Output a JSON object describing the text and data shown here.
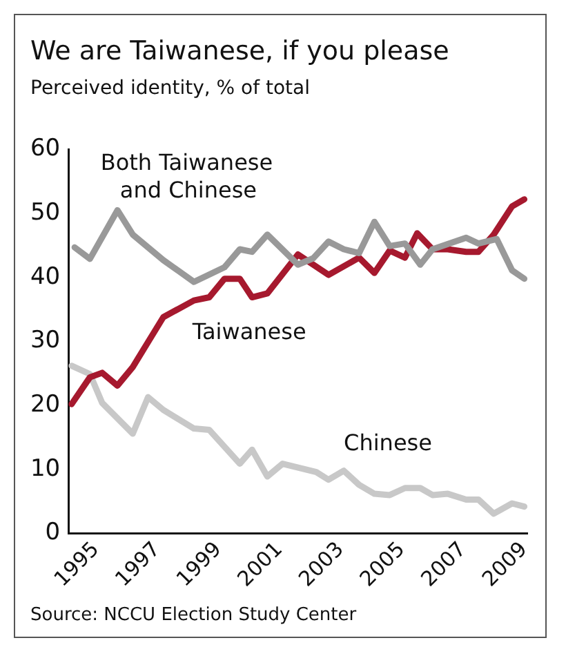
{
  "chart_data": {
    "type": "line",
    "title": "We are Taiwanese, if you please",
    "subtitle": "Perceived identity, % of total",
    "annotations": [
      "Source: NCCU Election Study Center"
    ],
    "xlim": [
      1994.1,
      2009.1
    ],
    "xticks": [
      1995,
      1997,
      1999,
      2001,
      2003,
      2005,
      2007,
      2009
    ],
    "ylim": [
      0,
      60
    ],
    "yticks": [
      0,
      10,
      20,
      30,
      40,
      50,
      60
    ],
    "grid": false,
    "legend": false,
    "marker": "none",
    "line_style": "solid",
    "series": [
      {
        "name": "Both Taiwanese and Chinese",
        "color": "#999999",
        "x": [
          1994.3,
          1994.8,
          1995.7,
          1996.2,
          1997.2,
          1998.2,
          1999.2,
          1999.7,
          2000.1,
          2000.6,
          2001.6,
          2002.1,
          2002.6,
          2003.1,
          2003.6,
          2004.1,
          2004.6,
          2005.1,
          2005.6,
          2006.0,
          2007.1,
          2007.5,
          2008.1,
          2008.6,
          2009.0
        ],
        "values": [
          44.7,
          42.9,
          50.5,
          46.7,
          42.7,
          39.3,
          41.6,
          44.4,
          44,
          46.7,
          42,
          43,
          45.6,
          44.4,
          43.8,
          48.7,
          44.9,
          45.3,
          42,
          44.4,
          46.2,
          45.3,
          46,
          41.1,
          39.8
        ]
      },
      {
        "name": "Taiwanese",
        "color": "#a6192e",
        "x": [
          1994.2,
          1994.8,
          1995.2,
          1995.7,
          1996.2,
          1997.2,
          1998.2,
          1998.7,
          1999.2,
          1999.7,
          2000.1,
          2000.6,
          2001.6,
          2002.6,
          2003.6,
          2004.1,
          2004.6,
          2005.1,
          2005.5,
          2006.0,
          2006.5,
          2007.1,
          2007.5,
          2008.0,
          2008.6,
          2009.0
        ],
        "values": [
          20.2,
          24.4,
          25.1,
          23.1,
          26,
          33.8,
          36.4,
          36.9,
          39.8,
          39.8,
          36.9,
          37.5,
          43.6,
          40.4,
          43.1,
          40.7,
          44.2,
          43.1,
          46.9,
          44.4,
          44.4,
          44,
          44,
          46.7,
          51.1,
          52.2
        ]
      },
      {
        "name": "Chinese",
        "color": "#c8c8c8",
        "x": [
          1994.2,
          1994.8,
          1995.2,
          1995.7,
          1996.2,
          1996.7,
          1997.2,
          1998.2,
          1998.7,
          1999.7,
          2000.1,
          2000.6,
          2001.1,
          2002.2,
          2002.6,
          2003.1,
          2003.6,
          2004.1,
          2004.6,
          2005.1,
          2005.6,
          2006.0,
          2006.5,
          2007.1,
          2007.5,
          2008.0,
          2008.6,
          2009.0
        ],
        "values": [
          26.2,
          24.9,
          20.4,
          18,
          15.6,
          21.3,
          19.3,
          16.4,
          16.2,
          10.9,
          13.1,
          8.9,
          10.9,
          9.6,
          8.4,
          9.8,
          7.6,
          6.2,
          6,
          7.1,
          7.1,
          6,
          6.2,
          5.3,
          5.3,
          3.1,
          4.7,
          4.2
        ]
      }
    ]
  }
}
